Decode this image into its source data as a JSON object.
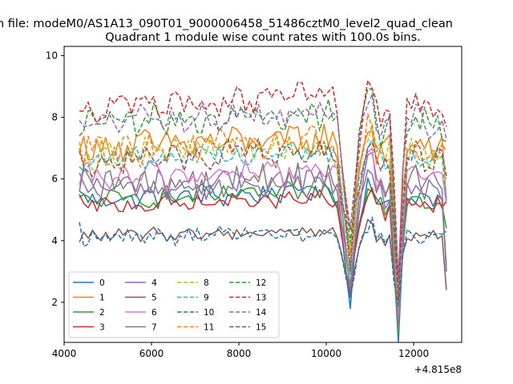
{
  "chart_data": {
    "type": "line",
    "suptitle": "n file: modeM0/AS1A13_090T01_9000006458_51486cztM0_level2_quad_clean",
    "title": "Quadrant 1 module wise count rates with 100.0s bins.",
    "xlabel": "",
    "ylabel": "",
    "x_offset_label": "+4.815e8",
    "xlim": [
      4000,
      13100
    ],
    "ylim": [
      0.7,
      10.3
    ],
    "x_ticks": [
      4000,
      6000,
      8000,
      10000,
      12000
    ],
    "y_ticks": [
      2,
      4,
      6,
      8,
      10
    ],
    "x_tick_labels": [
      "4000",
      "6000",
      "8000",
      "10000",
      "12000"
    ],
    "y_tick_labels": [
      "2",
      "4",
      "6",
      "8",
      "10"
    ],
    "legend_position": "lower-left",
    "x_range": [
      4350,
      12750
    ],
    "points_per_series": 85,
    "anchors": [
      [
        4350,
        0
      ],
      [
        10050,
        0.3
      ],
      [
        10250,
        0
      ],
      [
        10550,
        -3.3
      ],
      [
        10700,
        -1.0
      ],
      [
        10850,
        0
      ],
      [
        11000,
        1.0
      ],
      [
        11150,
        0
      ],
      [
        11350,
        -0.3
      ],
      [
        11450,
        0
      ],
      [
        11650,
        -4.4
      ],
      [
        11800,
        0
      ],
      [
        12000,
        0.2
      ],
      [
        12250,
        0
      ],
      [
        12500,
        0
      ],
      [
        12650,
        0
      ],
      [
        12750,
        -2.5
      ]
    ],
    "series": [
      {
        "name": "0",
        "style": "solid",
        "color": "#1f77b4",
        "base": 5.3,
        "amp": 0.3,
        "dip": 1.0,
        "start": 5.6,
        "end": 3.0
      },
      {
        "name": "1",
        "style": "solid",
        "color": "#ff7f0e",
        "base": 7.0,
        "amp": 0.45,
        "dip": 1.05,
        "start": 6.9,
        "end": 5.3
      },
      {
        "name": "2",
        "style": "solid",
        "color": "#2ca02c",
        "base": 5.3,
        "amp": 0.3,
        "dip": 0.95,
        "start": 5.4,
        "end": 4.4
      },
      {
        "name": "3",
        "style": "solid",
        "color": "#d62728",
        "base": 5.1,
        "amp": 0.25,
        "dip": 0.85,
        "start": 5.5,
        "end": 5.3
      },
      {
        "name": "4",
        "style": "solid",
        "color": "#9467bd",
        "base": 5.7,
        "amp": 0.4,
        "dip": 0.95,
        "start": 6.2,
        "end": 3.0
      },
      {
        "name": "5",
        "style": "solid",
        "color": "#8c564b",
        "base": 4.15,
        "amp": 0.18,
        "dip": 0.55,
        "start": 3.95,
        "end": 2.4
      },
      {
        "name": "6",
        "style": "solid",
        "color": "#e377c2",
        "base": 6.0,
        "amp": 0.4,
        "dip": 1.0,
        "start": 5.8,
        "end": 5.2
      },
      {
        "name": "7",
        "style": "solid",
        "color": "#7f7f7f",
        "base": 5.7,
        "amp": 0.5,
        "dip": 1.0,
        "start": 5.6,
        "end": 3.2
      },
      {
        "name": "8",
        "style": "dashed",
        "color": "#bcbd22",
        "base": 6.8,
        "amp": 0.45,
        "dip": 1.05,
        "start": 7.2,
        "end": 6.0
      },
      {
        "name": "9",
        "style": "dashed",
        "color": "#17becf",
        "base": 6.6,
        "amp": 0.35,
        "dip": 1.05,
        "start": 6.4,
        "end": 5.3
      },
      {
        "name": "10",
        "style": "dashed",
        "color": "#1f77b4",
        "base": 4.1,
        "amp": 0.25,
        "dip": 0.55,
        "start": 4.6,
        "end": 4.3
      },
      {
        "name": "11",
        "style": "dashed",
        "color": "#ff7f0e",
        "base": 6.9,
        "amp": 0.45,
        "dip": 1.05,
        "start": 7.0,
        "end": 6.9
      },
      {
        "name": "12",
        "style": "dashed",
        "color": "#2ca02c",
        "base": 7.8,
        "amp": 0.45,
        "dip": 1.15,
        "start": 7.4,
        "end": 7.2
      },
      {
        "name": "13",
        "style": "dashed",
        "color": "#d62728",
        "base": 8.3,
        "amp": 0.4,
        "dip": 1.25,
        "start": 8.2,
        "end": 7.7
      },
      {
        "name": "14",
        "style": "dashed",
        "color": "#9467bd",
        "base": 7.8,
        "amp": 0.4,
        "dip": 1.15,
        "start": 7.9,
        "end": 7.3
      },
      {
        "name": "15",
        "style": "dashed",
        "color": "#8c564b",
        "base": 6.6,
        "amp": 0.4,
        "dip": 1.05,
        "start": 6.9,
        "end": 6.1
      }
    ]
  }
}
